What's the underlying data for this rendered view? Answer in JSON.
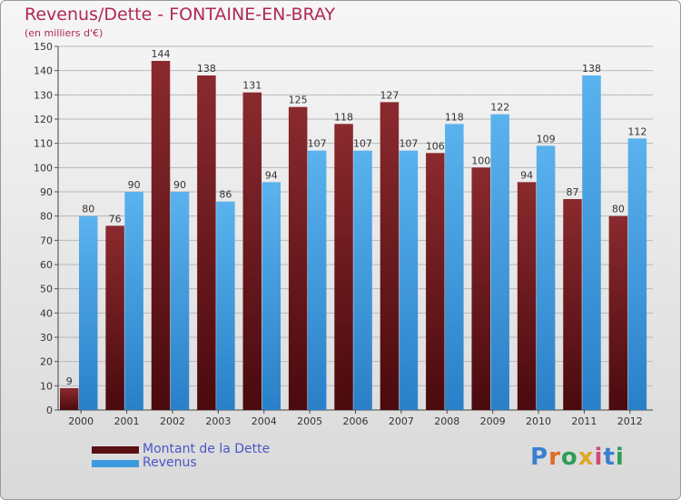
{
  "header": {
    "title": "Revenus/Dette - FONTAINE-EN-BRAY",
    "subtitle": "(en milliers d'€)"
  },
  "chart_data": {
    "type": "bar",
    "categories": [
      "2000",
      "2001",
      "2002",
      "2003",
      "2004",
      "2005",
      "2006",
      "2007",
      "2008",
      "2009",
      "2010",
      "2011",
      "2012"
    ],
    "series": [
      {
        "name": "Montant de la Dette",
        "color": "#7b1e22",
        "values": [
          9,
          76,
          144,
          138,
          131,
          125,
          118,
          127,
          106,
          100,
          94,
          87,
          80
        ]
      },
      {
        "name": "Revenus",
        "color": "#4aa6e6",
        "values": [
          80,
          90,
          90,
          86,
          94,
          107,
          107,
          107,
          118,
          122,
          109,
          138,
          112
        ]
      }
    ],
    "yticks": [
      0,
      10,
      20,
      30,
      40,
      50,
      60,
      70,
      80,
      90,
      100,
      110,
      120,
      130,
      140,
      150
    ],
    "ylim": [
      0,
      150
    ],
    "grid": true,
    "legend_position": "bottom-left",
    "xlabel": "",
    "ylabel": ""
  },
  "legend": {
    "items": [
      {
        "label": "Montant de la Dette",
        "color": "#5a0f14"
      },
      {
        "label": "Revenus",
        "color": "#3c9be0"
      }
    ]
  },
  "logo": {
    "text": "Proxiti"
  }
}
